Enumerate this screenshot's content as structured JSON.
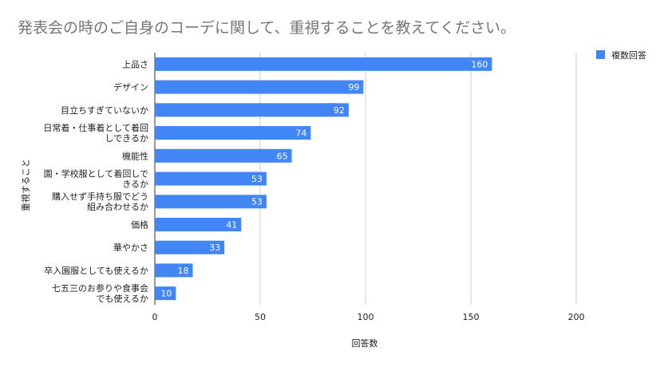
{
  "chart_data": {
    "type": "bar",
    "orientation": "horizontal",
    "title": "発表会の時のご自身のコーデに関して、重視することを教えてください。",
    "xlabel": "回答数",
    "ylabel": "重視すること",
    "xlim": [
      0,
      200
    ],
    "xticks": [
      0,
      50,
      100,
      150,
      200
    ],
    "grid": true,
    "legend_position": "top-right",
    "categories": [
      [
        "上品さ"
      ],
      [
        "デザイン"
      ],
      [
        "目立ちすぎていないか"
      ],
      [
        "日常着・仕事着として着回",
        "しできるか"
      ],
      [
        "機能性"
      ],
      [
        "園・学校服として着回しで",
        "きるか"
      ],
      [
        "購入せず手持ち服でどう",
        "組み合わせるか"
      ],
      [
        "価格"
      ],
      [
        "華やかさ"
      ],
      [
        "卒入園服としても使えるか"
      ],
      [
        "七五三のお参りや食事会",
        "でも使えるか"
      ]
    ],
    "series": [
      {
        "name": "複数回答",
        "color": "#4285f4",
        "values": [
          160,
          99,
          92,
          74,
          65,
          53,
          53,
          41,
          33,
          18,
          10
        ]
      }
    ]
  }
}
